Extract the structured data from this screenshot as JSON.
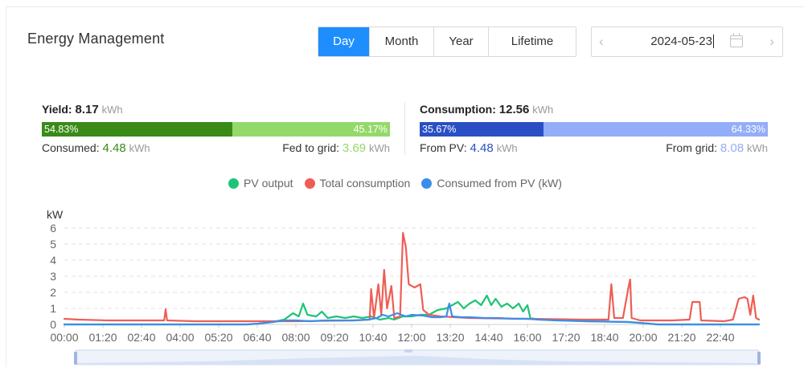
{
  "header": {
    "title": "Energy Management",
    "tabs": [
      {
        "label": "Day",
        "active": true
      },
      {
        "label": "Month",
        "active": false
      },
      {
        "label": "Year",
        "active": false
      },
      {
        "label": "Lifetime",
        "active": false
      }
    ],
    "date": "2024-05-23",
    "prev_icon": "chevron-left-icon",
    "next_icon": "chevron-right-icon",
    "calendar_icon": "calendar-icon"
  },
  "yield": {
    "label": "Yield:",
    "value": "8.17",
    "unit": "kWh",
    "consumed_pct": "54.83%",
    "fed_pct": "45.17%",
    "consumed_fraction": 0.5483,
    "consumed_label": "Consumed:",
    "consumed_value": "4.48",
    "consumed_unit": "kWh",
    "fed_label": "Fed to grid:",
    "fed_value": "3.69",
    "fed_unit": "kWh",
    "colors": {
      "left": "#3a8a18",
      "right": "#93d96a",
      "fed_text": "#93d96a",
      "consumed_text": "#3a8a18"
    }
  },
  "consumption": {
    "label": "Consumption:",
    "value": "12.56",
    "unit": "kWh",
    "pv_pct": "35.67%",
    "grid_pct": "64.33%",
    "pv_fraction": 0.3567,
    "pv_label": "From PV:",
    "pv_value": "4.48",
    "pv_unit": "kWh",
    "grid_label": "From grid:",
    "grid_value": "8.08",
    "grid_unit": "kWh",
    "colors": {
      "left": "#2a4fc4",
      "right": "#94adf8",
      "pv_text": "#2a4fc4",
      "grid_text": "#94adf8"
    }
  },
  "legend": [
    {
      "name": "PV output",
      "color": "#1fc377"
    },
    {
      "name": "Total consumption",
      "color": "#ee5e55"
    },
    {
      "name": "Consumed from PV (kW)",
      "color": "#3b8ee8"
    }
  ],
  "chart_data": {
    "type": "line",
    "ylabel": "kW",
    "ylim": [
      0,
      6
    ],
    "yticks": [
      "0",
      "1",
      "2",
      "3",
      "4",
      "5",
      "6"
    ],
    "xticks": [
      "00:00",
      "01:20",
      "02:40",
      "04:00",
      "05:20",
      "06:40",
      "08:00",
      "09:20",
      "10:40",
      "12:00",
      "13:20",
      "14:40",
      "16:00",
      "17:20",
      "18:40",
      "20:00",
      "21:20",
      "22:40"
    ],
    "x_range_hours": [
      0,
      24
    ],
    "grid": true,
    "legend_position": "top-center",
    "series": [
      {
        "name": "PV output",
        "color": "#1fc377",
        "points": [
          [
            0,
            0
          ],
          [
            6.3,
            0
          ],
          [
            6.7,
            0.05
          ],
          [
            7.2,
            0.15
          ],
          [
            7.6,
            0.3
          ],
          [
            7.9,
            0.7
          ],
          [
            8.1,
            0.5
          ],
          [
            8.25,
            1.3
          ],
          [
            8.4,
            0.6
          ],
          [
            8.7,
            0.5
          ],
          [
            8.9,
            0.8
          ],
          [
            9.1,
            0.4
          ],
          [
            9.4,
            0.5
          ],
          [
            9.7,
            0.4
          ],
          [
            10.0,
            0.5
          ],
          [
            10.3,
            0.4
          ],
          [
            10.6,
            0.5
          ],
          [
            10.9,
            0.3
          ],
          [
            11.2,
            0.4
          ],
          [
            11.4,
            0.3
          ],
          [
            11.7,
            0.5
          ],
          [
            12.0,
            0.5
          ],
          [
            12.3,
            0.6
          ],
          [
            12.6,
            0.6
          ],
          [
            12.9,
            0.9
          ],
          [
            13.2,
            1.0
          ],
          [
            13.4,
            1.2
          ],
          [
            13.6,
            1.4
          ],
          [
            13.8,
            1.0
          ],
          [
            14.0,
            1.3
          ],
          [
            14.2,
            1.5
          ],
          [
            14.4,
            1.2
          ],
          [
            14.6,
            1.8
          ],
          [
            14.75,
            1.2
          ],
          [
            14.9,
            1.6
          ],
          [
            15.1,
            1.1
          ],
          [
            15.3,
            1.3
          ],
          [
            15.5,
            1.0
          ],
          [
            15.7,
            1.3
          ],
          [
            15.85,
            0.8
          ],
          [
            16.0,
            1.2
          ],
          [
            16.1,
            0.4
          ],
          [
            16.4,
            0.3
          ],
          [
            17.0,
            0.3
          ],
          [
            18.0,
            0.2
          ],
          [
            19.5,
            0.15
          ],
          [
            20.2,
            0.05
          ],
          [
            20.5,
            0
          ],
          [
            24,
            0
          ]
        ]
      },
      {
        "name": "Total consumption",
        "color": "#ee5e55",
        "points": [
          [
            0,
            0.35
          ],
          [
            0.5,
            0.3
          ],
          [
            1.5,
            0.25
          ],
          [
            3.0,
            0.25
          ],
          [
            3.45,
            0.25
          ],
          [
            3.5,
            0.95
          ],
          [
            3.55,
            0.25
          ],
          [
            4.5,
            0.2
          ],
          [
            6.0,
            0.2
          ],
          [
            8.0,
            0.2
          ],
          [
            10.0,
            0.25
          ],
          [
            10.55,
            0.3
          ],
          [
            10.6,
            2.2
          ],
          [
            10.7,
            0.4
          ],
          [
            10.85,
            2.5
          ],
          [
            10.95,
            0.6
          ],
          [
            11.05,
            3.4
          ],
          [
            11.15,
            1.0
          ],
          [
            11.3,
            2.4
          ],
          [
            11.4,
            0.4
          ],
          [
            11.6,
            0.5
          ],
          [
            11.7,
            5.7
          ],
          [
            11.8,
            4.8
          ],
          [
            11.9,
            2.5
          ],
          [
            12.1,
            2.3
          ],
          [
            12.3,
            2.5
          ],
          [
            12.4,
            0.9
          ],
          [
            12.6,
            0.6
          ],
          [
            13.0,
            0.5
          ],
          [
            14.0,
            0.4
          ],
          [
            16.0,
            0.35
          ],
          [
            18.0,
            0.3
          ],
          [
            18.8,
            0.3
          ],
          [
            18.9,
            2.5
          ],
          [
            19.0,
            0.4
          ],
          [
            19.3,
            0.4
          ],
          [
            19.5,
            2.4
          ],
          [
            19.55,
            2.8
          ],
          [
            19.6,
            0.4
          ],
          [
            19.9,
            0.25
          ],
          [
            21.0,
            0.25
          ],
          [
            21.6,
            0.3
          ],
          [
            21.7,
            1.4
          ],
          [
            21.95,
            1.4
          ],
          [
            22.0,
            0.25
          ],
          [
            22.8,
            0.2
          ],
          [
            23.1,
            0.3
          ],
          [
            23.3,
            1.6
          ],
          [
            23.5,
            1.7
          ],
          [
            23.6,
            1.6
          ],
          [
            23.7,
            0.6
          ],
          [
            23.8,
            1.8
          ],
          [
            23.9,
            0.4
          ],
          [
            24,
            0.3
          ]
        ]
      },
      {
        "name": "Consumed from PV (kW)",
        "color": "#3b8ee8",
        "points": [
          [
            0,
            0
          ],
          [
            6.3,
            0
          ],
          [
            6.7,
            0.05
          ],
          [
            7.2,
            0.15
          ],
          [
            7.6,
            0.25
          ],
          [
            8.0,
            0.25
          ],
          [
            8.5,
            0.2
          ],
          [
            9.0,
            0.25
          ],
          [
            9.5,
            0.25
          ],
          [
            10.0,
            0.25
          ],
          [
            10.5,
            0.3
          ],
          [
            10.8,
            0.4
          ],
          [
            11.0,
            0.6
          ],
          [
            11.2,
            0.5
          ],
          [
            11.5,
            0.7
          ],
          [
            11.8,
            0.5
          ],
          [
            12.0,
            0.6
          ],
          [
            12.4,
            0.55
          ],
          [
            12.7,
            0.45
          ],
          [
            13.0,
            0.45
          ],
          [
            13.2,
            0.5
          ],
          [
            13.3,
            1.3
          ],
          [
            13.4,
            0.5
          ],
          [
            13.7,
            0.45
          ],
          [
            14.0,
            0.45
          ],
          [
            14.5,
            0.4
          ],
          [
            15.0,
            0.4
          ],
          [
            15.5,
            0.35
          ],
          [
            16.0,
            0.35
          ],
          [
            16.4,
            0.3
          ],
          [
            17.0,
            0.25
          ],
          [
            18.0,
            0.2
          ],
          [
            19.5,
            0.15
          ],
          [
            20.2,
            0.05
          ],
          [
            20.5,
            0
          ],
          [
            24,
            0
          ]
        ]
      }
    ]
  }
}
